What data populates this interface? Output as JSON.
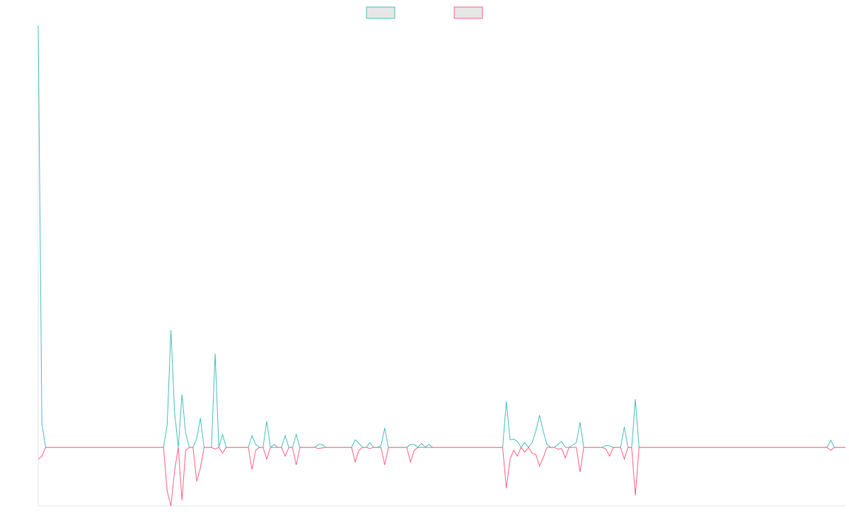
{
  "chart_data": {
    "type": "line",
    "title": "",
    "xlabel": "",
    "ylabel": "",
    "grid": false,
    "legend_position": "top",
    "x_count": 220,
    "ylim": [
      -100,
      720
    ],
    "series": [
      {
        "color": "#4bc0c0",
        "fill": "#e6e6e6",
        "sparse_values": {
          "0": 720,
          "1": 40,
          "34": 0,
          "35": 40,
          "36": 200,
          "37": 60,
          "38": 0,
          "39": 90,
          "40": 25,
          "41": 0,
          "42": 0,
          "43": 15,
          "44": 50,
          "45": 0,
          "46": 0,
          "47": 0,
          "48": 160,
          "49": 0,
          "50": 22,
          "51": 0,
          "57": 0,
          "58": 20,
          "59": 5,
          "60": 0,
          "61": 0,
          "62": 45,
          "63": 0,
          "64": 5,
          "65": 0,
          "66": 0,
          "67": 20,
          "68": 0,
          "69": 0,
          "70": 22,
          "71": 0,
          "75": 0,
          "76": 5,
          "77": 5,
          "78": 0,
          "84": 0,
          "85": 0,
          "86": 13,
          "87": 7,
          "88": 0,
          "89": 0,
          "90": 8,
          "91": 0,
          "92": 0,
          "93": 3,
          "94": 33,
          "95": 0,
          "100": 0,
          "101": 5,
          "102": 5,
          "103": 0,
          "104": 7,
          "105": 0,
          "106": 5,
          "107": 0,
          "126": 0,
          "127": 78,
          "128": 13,
          "129": 14,
          "130": 10,
          "131": 0,
          "132": 8,
          "133": 0,
          "134": 8,
          "135": 28,
          "136": 55,
          "137": 28,
          "138": 5,
          "139": 0,
          "140": 0,
          "141": 5,
          "142": 10,
          "143": 0,
          "144": 0,
          "145": 4,
          "146": 8,
          "147": 43,
          "148": 0,
          "153": 0,
          "154": 3,
          "155": 3,
          "156": 0,
          "157": 0,
          "158": 0,
          "159": 35,
          "160": 0,
          "161": 0,
          "162": 82,
          "163": 0,
          "214": 0,
          "215": 12,
          "216": 0
        }
      },
      {
        "color": "#ff6384",
        "fill": "#e6e6e6",
        "sparse_values": {
          "0": -20,
          "1": -15,
          "2": 0,
          "34": 0,
          "35": -75,
          "36": -100,
          "37": -40,
          "38": 0,
          "39": -90,
          "40": -5,
          "41": 0,
          "42": 0,
          "43": -58,
          "44": -35,
          "45": 0,
          "46": 0,
          "47": 0,
          "48": -3,
          "49": 0,
          "50": -10,
          "51": 0,
          "57": 0,
          "58": -38,
          "59": -5,
          "60": 0,
          "61": 0,
          "62": -20,
          "63": 0,
          "64": 0,
          "65": 0,
          "66": 0,
          "67": -15,
          "68": 0,
          "69": 0,
          "70": -30,
          "71": 0,
          "75": 0,
          "76": -2,
          "77": -1,
          "78": 0,
          "84": 0,
          "85": 0,
          "86": -25,
          "87": -5,
          "88": 0,
          "89": 0,
          "90": -2,
          "91": 0,
          "92": 0,
          "93": 0,
          "94": -30,
          "95": 0,
          "100": 0,
          "101": -25,
          "102": -5,
          "103": 0,
          "104": 0,
          "105": 0,
          "106": 0,
          "107": 0,
          "126": 0,
          "127": -70,
          "128": -20,
          "129": -5,
          "130": -15,
          "131": 0,
          "132": -8,
          "133": 0,
          "134": -10,
          "135": -12,
          "136": -32,
          "137": -18,
          "138": 0,
          "139": 0,
          "140": 0,
          "141": -3,
          "142": -2,
          "143": -18,
          "144": 0,
          "145": 0,
          "146": 0,
          "147": -42,
          "148": 0,
          "153": 0,
          "154": -3,
          "155": -15,
          "156": 0,
          "157": 0,
          "158": 0,
          "159": -20,
          "160": 0,
          "161": 0,
          "162": -82,
          "163": 0,
          "214": 0,
          "215": -5,
          "216": 0
        }
      }
    ]
  }
}
